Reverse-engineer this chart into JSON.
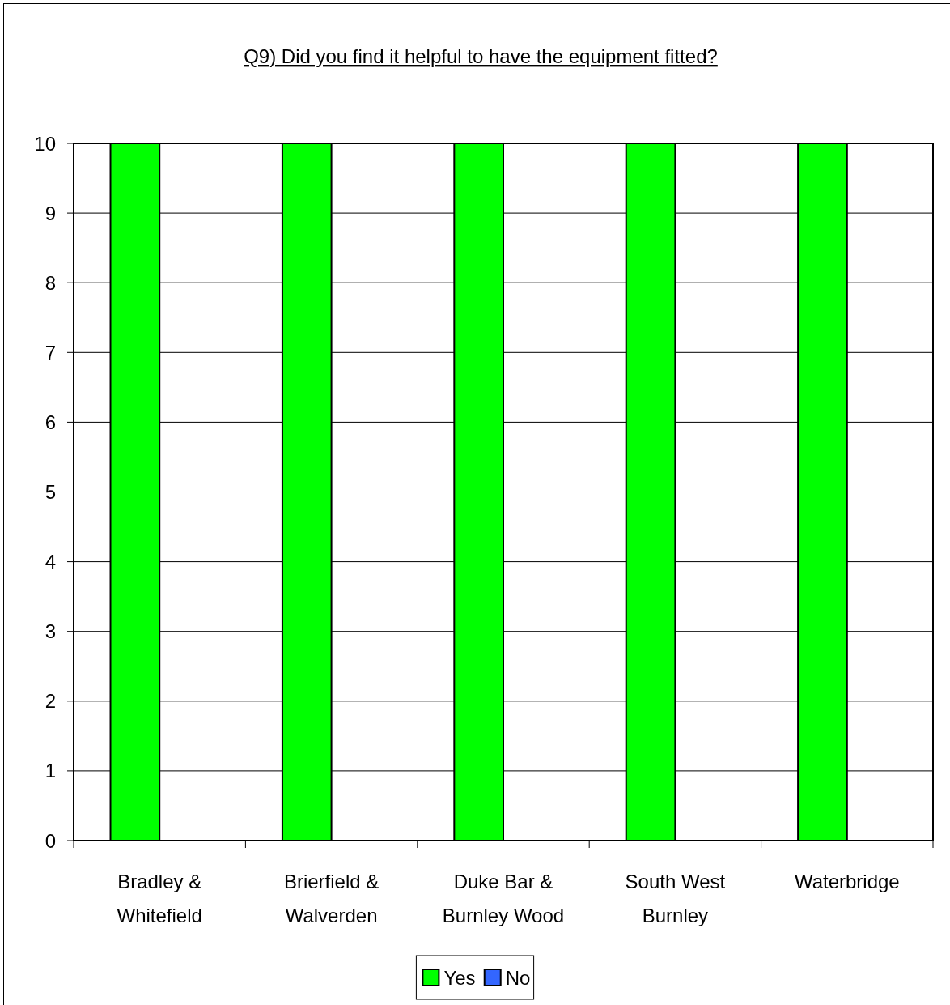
{
  "chart_data": {
    "type": "bar",
    "title": "Q9) Did you find it helpful to have the equipment fitted?",
    "categories": [
      "Bradley & Whitefield",
      "Brierfield & Walverden",
      "Duke Bar & Burnley Wood",
      "South West Burnley",
      "Waterbridge"
    ],
    "series": [
      {
        "name": "Yes",
        "color": "#00ff00",
        "values": [
          10,
          10,
          10,
          10,
          10
        ]
      },
      {
        "name": "No",
        "color": "#3366ff",
        "values": [
          0,
          0,
          0,
          0,
          0
        ]
      }
    ],
    "ylim": [
      0,
      10
    ],
    "yticks": [
      0,
      1,
      2,
      3,
      4,
      5,
      6,
      7,
      8,
      9,
      10
    ],
    "grid": "y",
    "legend": "bottom"
  }
}
